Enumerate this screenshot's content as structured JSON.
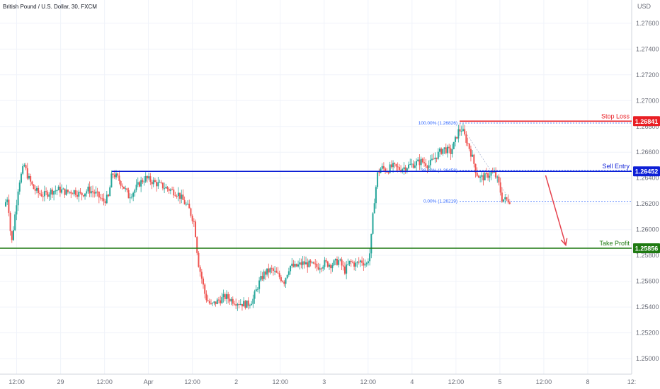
{
  "chart_data": {
    "type": "candlestick",
    "title": "British Pound / U.S. Dollar, 30, FXCM",
    "currency": "USD",
    "y_ticks": [
      1.25,
      1.252,
      1.254,
      1.256,
      1.258,
      1.26,
      1.262,
      1.264,
      1.266,
      1.268,
      1.27,
      1.272,
      1.274,
      1.276
    ],
    "y_tick_labels": [
      "1.25000",
      "1.25200",
      "1.25400",
      "1.25600",
      "1.25800",
      "1.26000",
      "1.26200",
      "1.26400",
      "1.26600",
      "1.26800",
      "1.27000",
      "1.27200",
      "1.27400",
      "1.27600"
    ],
    "ylim": [
      1.2488,
      1.2778
    ],
    "x_ticks": [
      {
        "label": "12:00",
        "x": 6
      },
      {
        "label": "29",
        "x": 30
      },
      {
        "label": "12:00",
        "x": 54
      },
      {
        "label": "Apr",
        "x": 78
      },
      {
        "label": "12:00",
        "x": 102
      },
      {
        "label": "2",
        "x": 126
      },
      {
        "label": "12:00",
        "x": 150
      },
      {
        "label": "3",
        "x": 174
      },
      {
        "label": "12:00",
        "x": 198
      },
      {
        "label": "4",
        "x": 222
      },
      {
        "label": "12:00",
        "x": 246
      },
      {
        "label": "5",
        "x": 270
      },
      {
        "label": "12:00",
        "x": 294
      },
      {
        "label": "8",
        "x": 318
      },
      {
        "label": "12:",
        "x": 342
      }
    ],
    "xlim": [
      0,
      342
    ],
    "levels": [
      {
        "name": "Stop Loss",
        "value": 1.26841,
        "label": "1.26841",
        "color": "#e91e24",
        "x_start": 248
      },
      {
        "name": "Sell Entry",
        "value": 1.26452,
        "label": "1.26452",
        "color": "#0d1fd6",
        "x_start": 58
      },
      {
        "name": "Take Profit",
        "value": 1.25856,
        "label": "1.25856",
        "color": "#1f7a12",
        "x_start": 0
      }
    ],
    "fib": [
      {
        "label": "100.00% (1.26826)",
        "value": 1.26826
      },
      {
        "label": "38.20% (1.26458)",
        "value": 1.26458
      },
      {
        "label": "0.00% (1.26219)",
        "value": 1.26219
      }
    ],
    "fib_x_range": [
      248,
      342
    ],
    "arrow": {
      "from": [
        295,
        1.2642
      ],
      "to": [
        306,
        1.2588
      ],
      "color": "#e5414d"
    },
    "anchors": [
      [
        0,
        1.2618
      ],
      [
        2,
        1.2626
      ],
      [
        4,
        1.2588
      ],
      [
        6,
        1.2612
      ],
      [
        8,
        1.2636
      ],
      [
        11,
        1.265
      ],
      [
        13,
        1.2641
      ],
      [
        16,
        1.2632
      ],
      [
        19,
        1.2628
      ],
      [
        22,
        1.2627
      ],
      [
        26,
        1.263
      ],
      [
        30,
        1.2631
      ],
      [
        34,
        1.2629
      ],
      [
        38,
        1.263
      ],
      [
        42,
        1.2627
      ],
      [
        46,
        1.2631
      ],
      [
        50,
        1.2628
      ],
      [
        54,
        1.2622
      ],
      [
        57,
        1.2625
      ],
      [
        59,
        1.2644
      ],
      [
        62,
        1.264
      ],
      [
        65,
        1.2634
      ],
      [
        68,
        1.2626
      ],
      [
        71,
        1.263
      ],
      [
        74,
        1.2636
      ],
      [
        77,
        1.264
      ],
      [
        80,
        1.2638
      ],
      [
        83,
        1.2636
      ],
      [
        86,
        1.2634
      ],
      [
        89,
        1.2632
      ],
      [
        92,
        1.263
      ],
      [
        95,
        1.2628
      ],
      [
        98,
        1.2622
      ],
      [
        101,
        1.2616
      ],
      [
        104,
        1.2605
      ],
      [
        106,
        1.2575
      ],
      [
        108,
        1.2562
      ],
      [
        110,
        1.2548
      ],
      [
        113,
        1.2541
      ],
      [
        117,
        1.2545
      ],
      [
        121,
        1.2548
      ],
      [
        125,
        1.2545
      ],
      [
        129,
        1.2543
      ],
      [
        133,
        1.2542
      ],
      [
        136,
        1.2546
      ],
      [
        139,
        1.2558
      ],
      [
        142,
        1.2566
      ],
      [
        146,
        1.2569
      ],
      [
        150,
        1.2564
      ],
      [
        153,
        1.256
      ],
      [
        156,
        1.2572
      ],
      [
        159,
        1.2571
      ],
      [
        163,
        1.2574
      ],
      [
        167,
        1.2573
      ],
      [
        171,
        1.2571
      ],
      [
        175,
        1.2574
      ],
      [
        179,
        1.2573
      ],
      [
        183,
        1.2576
      ],
      [
        186,
        1.2568
      ],
      [
        189,
        1.2575
      ],
      [
        192,
        1.2573
      ],
      [
        195,
        1.2576
      ],
      [
        198,
        1.2573
      ],
      [
        200,
        1.2583
      ],
      [
        202,
        1.262
      ],
      [
        204,
        1.2643
      ],
      [
        206,
        1.2648
      ],
      [
        209,
        1.2646
      ],
      [
        212,
        1.2649
      ],
      [
        216,
        1.2647
      ],
      [
        220,
        1.2649
      ],
      [
        224,
        1.2651
      ],
      [
        228,
        1.2653
      ],
      [
        232,
        1.265
      ],
      [
        236,
        1.2657
      ],
      [
        240,
        1.2663
      ],
      [
        244,
        1.266
      ],
      [
        246,
        1.2667
      ],
      [
        248,
        1.2676
      ],
      [
        250,
        1.2678
      ],
      [
        252,
        1.2671
      ],
      [
        254,
        1.2664
      ],
      [
        256,
        1.2655
      ],
      [
        258,
        1.2644
      ],
      [
        260,
        1.264
      ],
      [
        263,
        1.2641
      ],
      [
        266,
        1.2644
      ],
      [
        268,
        1.2643
      ],
      [
        270,
        1.2637
      ],
      [
        272,
        1.2624
      ],
      [
        274,
        1.2623
      ],
      [
        276,
        1.2623
      ]
    ]
  }
}
